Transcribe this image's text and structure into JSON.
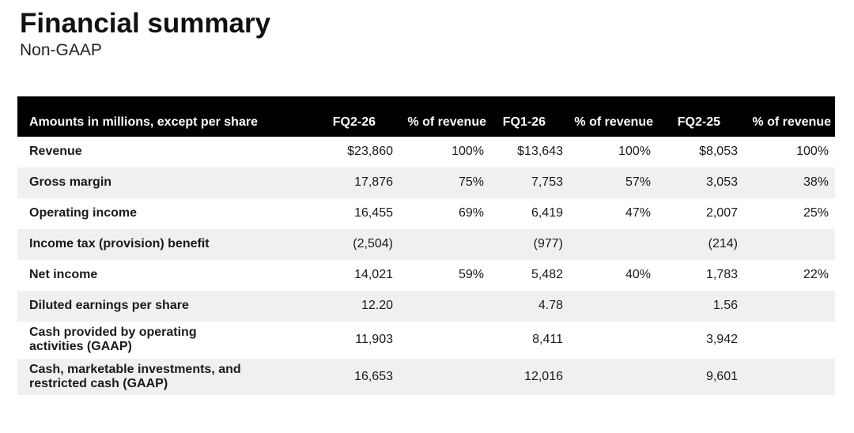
{
  "page": {
    "title": "Financial summary",
    "subtitle": "Non-GAAP"
  },
  "colors": {
    "header_bg": "#000000",
    "header_text": "#ffffff",
    "row_alt_bg": "#f0f0f0",
    "text": "#1a1a1a"
  },
  "table": {
    "headers": [
      "Amounts in millions, except per share",
      "FQ2-26",
      "% of revenue",
      "FQ1-26",
      "% of revenue",
      "FQ2-25",
      "% of revenue"
    ],
    "rows": [
      {
        "label": "Revenue",
        "values": [
          "$23,860",
          "100%",
          "$13,643",
          "100%",
          "$8,053",
          "100%"
        ]
      },
      {
        "label": "Gross margin",
        "values": [
          "17,876",
          "75%",
          "7,753",
          "57%",
          "3,053",
          "38%"
        ]
      },
      {
        "label": "Operating income",
        "values": [
          "16,455",
          "69%",
          "6,419",
          "47%",
          "2,007",
          "25%"
        ]
      },
      {
        "label": "Income tax (provision) benefit",
        "values": [
          "(2,504)",
          "",
          "(977)",
          "",
          "(214)",
          ""
        ]
      },
      {
        "label": "Net income",
        "values": [
          "14,021",
          "59%",
          "5,482",
          "40%",
          "1,783",
          "22%"
        ]
      },
      {
        "label": "Diluted earnings per share",
        "values": [
          "12.20",
          "",
          "4.78",
          "",
          "1.56",
          ""
        ]
      },
      {
        "label": "Cash provided by operating activities (GAAP)",
        "values": [
          "11,903",
          "",
          "8,411",
          "",
          "3,942",
          ""
        ]
      },
      {
        "label": "Cash, marketable investments, and restricted cash (GAAP)",
        "values": [
          "16,653",
          "",
          "12,016",
          "",
          "9,601",
          ""
        ]
      }
    ]
  }
}
